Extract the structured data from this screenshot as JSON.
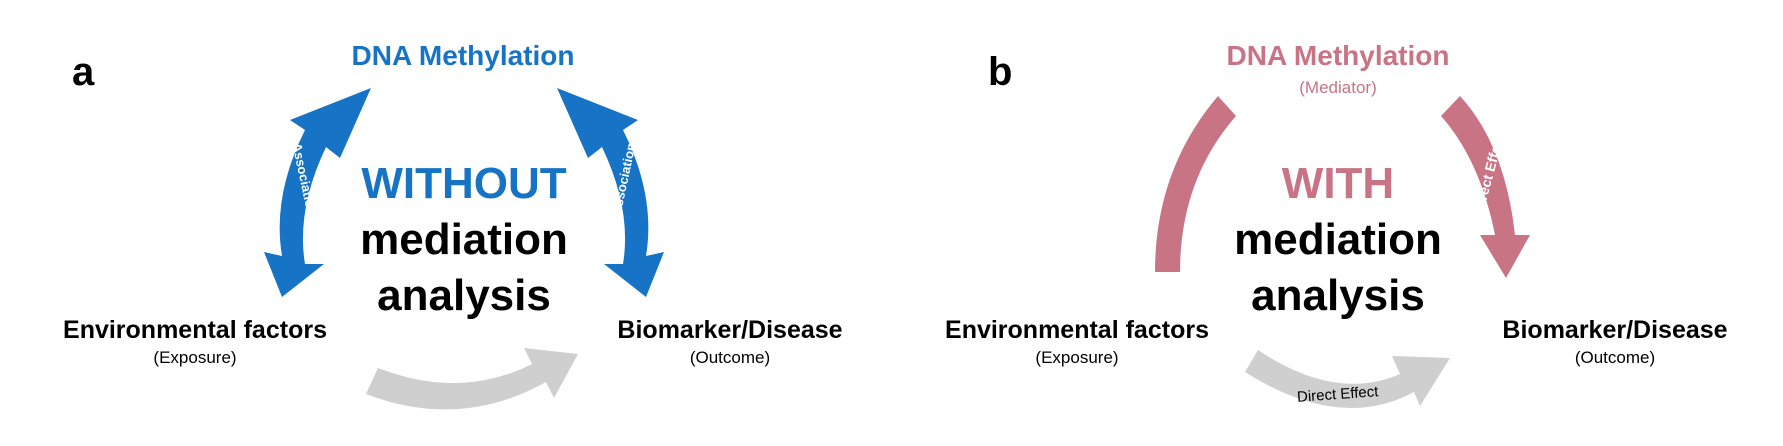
{
  "panels": [
    {
      "id": "a",
      "letter": "a",
      "top_node": {
        "title": "DNA Methylation",
        "subtitle": ""
      },
      "left_node": {
        "title": "Environmental factors",
        "subtitle": "(Exposure)"
      },
      "right_node": {
        "title": "Biomarker/Disease",
        "subtitle": "(Outcome)"
      },
      "center": {
        "keyword": "WITHOUT",
        "line2": "mediation",
        "line3": "analysis"
      },
      "left_arrow_label": "Association",
      "right_arrow_label": "Association",
      "bottom_arrow_label": ""
    },
    {
      "id": "b",
      "letter": "b",
      "top_node": {
        "title": "DNA Methylation",
        "subtitle": "(Mediator)"
      },
      "left_node": {
        "title": "Environmental factors",
        "subtitle": "(Exposure)"
      },
      "right_node": {
        "title": "Biomarker/Disease",
        "subtitle": "(Outcome)"
      },
      "center": {
        "keyword": "WITH",
        "line2": "mediation",
        "line3": "analysis"
      },
      "left_arrow_label": "",
      "right_arrow_label": "Indirect Effect",
      "bottom_arrow_label": "Direct Effect"
    }
  ],
  "colors": {
    "blue": "#1773c6",
    "pink": "#c97485",
    "gray": "#cfcfcf",
    "black": "#000000"
  }
}
